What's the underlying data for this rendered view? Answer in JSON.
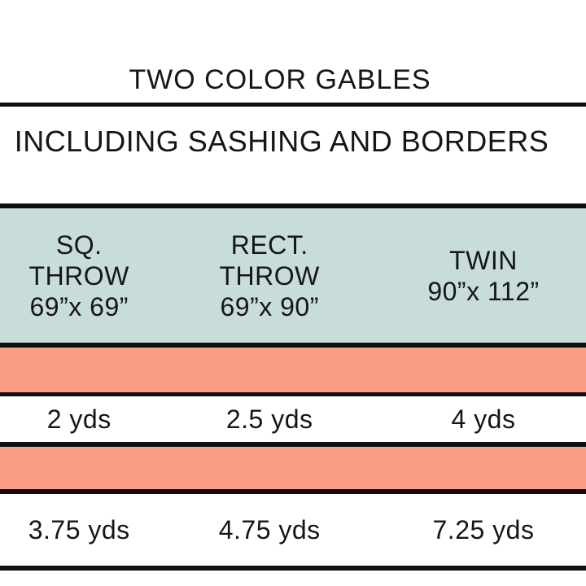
{
  "title": "TWO COLOR GABLES",
  "subtitle": "INCLUDING SASHING AND BORDERS",
  "colors": {
    "header_band": "#c8dcda",
    "accent_band": "#fa9f85",
    "rule": "#0f0f0f",
    "text": "#161616",
    "background": "#ffffff"
  },
  "table": {
    "columns": [
      {
        "lines": [
          "SQ.",
          "THROW",
          "69”x 69”"
        ]
      },
      {
        "lines": [
          "RECT.",
          "THROW",
          "69”x 90”"
        ]
      },
      {
        "lines": [
          "TWIN",
          "90”x 112”"
        ]
      }
    ],
    "rows": [
      {
        "values": [
          "2 yds",
          "2.5 yds",
          "4 yds"
        ]
      },
      {
        "values": [
          "3.75 yds",
          "4.75 yds",
          "7.25 yds"
        ]
      }
    ]
  },
  "chart_data": {
    "type": "table",
    "title": "TWO COLOR GABLES",
    "subtitle": "INCLUDING SASHING AND BORDERS",
    "columns": [
      "SQ. THROW 69”x 69”",
      "RECT. THROW 69”x 90”",
      "TWIN 90”x 112”"
    ],
    "rows": [
      {
        "label": "fabric-1-yardage",
        "values": [
          "2 yds",
          "2.5 yds",
          "4 yds"
        ],
        "values_numeric_yds": [
          2,
          2.5,
          4
        ]
      },
      {
        "label": "fabric-2-yardage",
        "values": [
          "3.75 yds",
          "4.75 yds",
          "7.25 yds"
        ],
        "values_numeric_yds": [
          3.75,
          4.75,
          7.25
        ]
      }
    ],
    "notes": "Two empty salmon color-swatch bands precede each yardage row; header band is pale teal."
  }
}
